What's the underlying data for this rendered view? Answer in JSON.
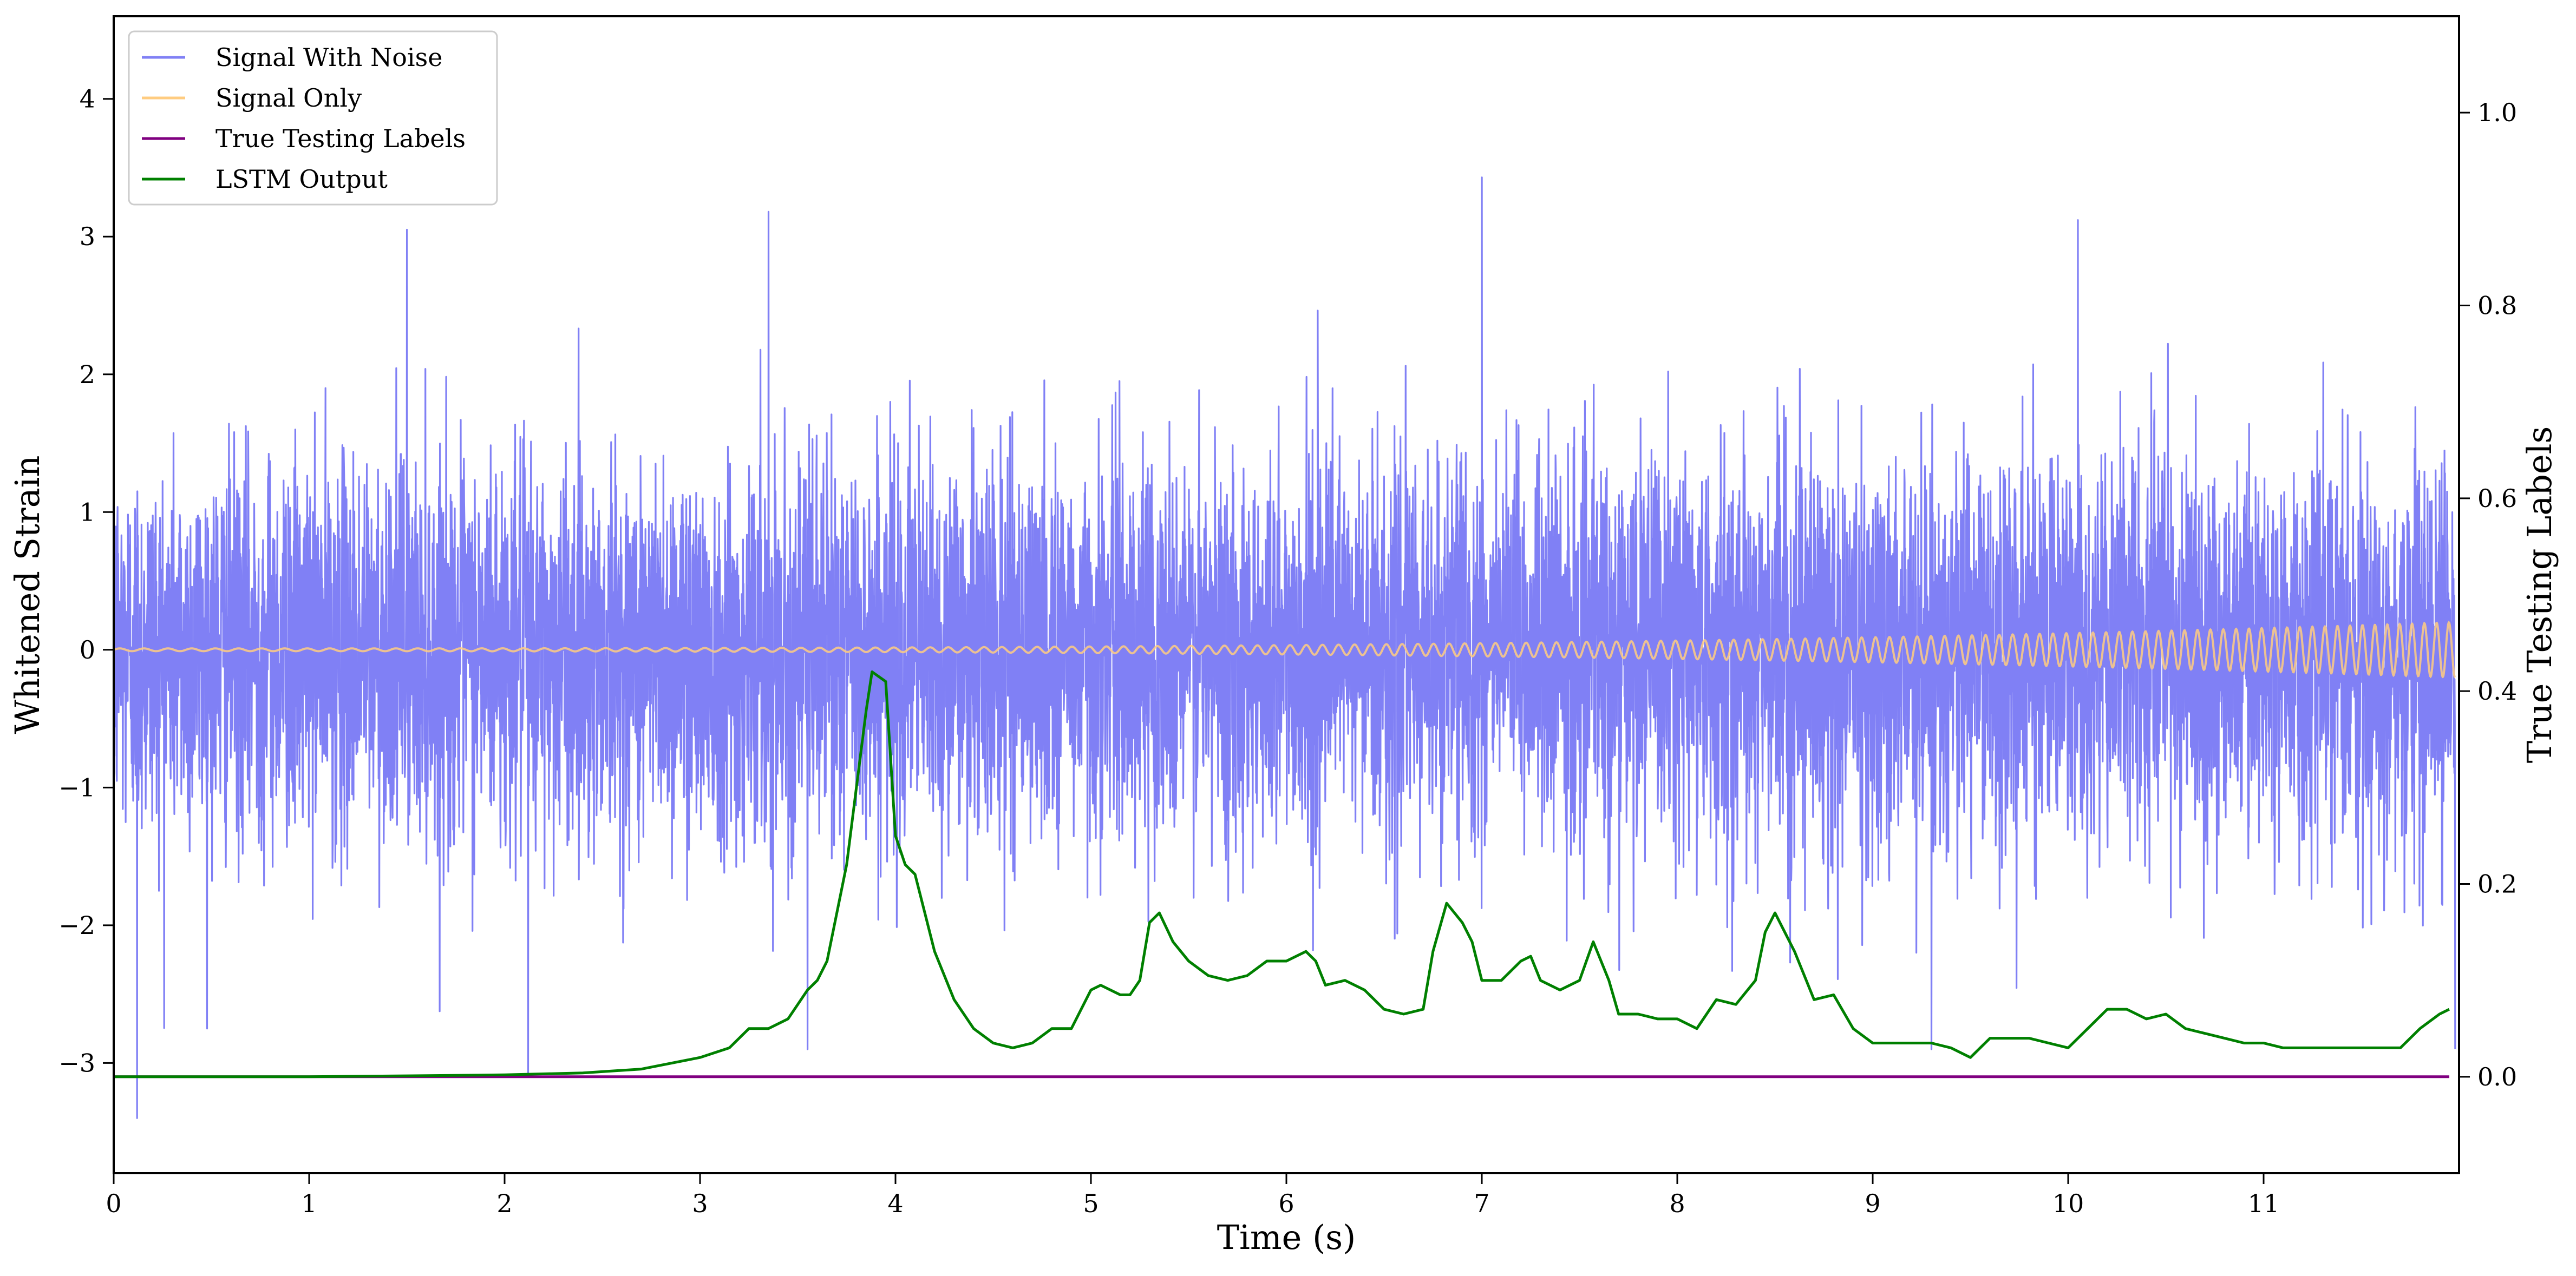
{
  "chart_data": {
    "type": "line",
    "title": "",
    "xlabel": "Time (s)",
    "ylabel": "Whitened Strain",
    "y2label": "True Testing Labels",
    "xlim": [
      0,
      12
    ],
    "ylim": [
      -3.8,
      4.6
    ],
    "y2lim": [
      -0.1,
      1.1
    ],
    "x_ticks": [
      0,
      1,
      2,
      3,
      4,
      5,
      6,
      7,
      8,
      9,
      10,
      11
    ],
    "x_tick_labels": [
      "0",
      "1",
      "2",
      "3",
      "4",
      "5",
      "6",
      "7",
      "8",
      "9",
      "10",
      "11"
    ],
    "y_ticks": [
      -3,
      -2,
      -1,
      0,
      1,
      2,
      3,
      4
    ],
    "y_tick_labels": [
      "−3",
      "−2",
      "−1",
      "0",
      "1",
      "2",
      "3",
      "4"
    ],
    "y2_ticks": [
      0.0,
      0.2,
      0.4,
      0.6,
      0.8,
      1.0
    ],
    "y2_tick_labels": [
      "0.0",
      "0.2",
      "0.4",
      "0.6",
      "0.8",
      "1.0"
    ],
    "grid": false,
    "legend_position": "top-left",
    "series": [
      {
        "name": "Signal With Noise",
        "axis": "left",
        "color": "#8080f5",
        "noise_envelope": {
          "typical_abs": 1.6,
          "peak_max": 3.4,
          "peak_min": -3.4
        },
        "notable_peaks": [
          {
            "x": 0.12,
            "y": -3.4
          },
          {
            "x": 1.5,
            "y": 3.05
          },
          {
            "x": 3.35,
            "y": 3.18
          },
          {
            "x": 7.0,
            "y": 3.43
          },
          {
            "x": 10.05,
            "y": 3.12
          },
          {
            "x": 2.12,
            "y": -3.1
          },
          {
            "x": 3.55,
            "y": -2.9
          },
          {
            "x": 9.3,
            "y": -2.9
          },
          {
            "x": 11.98,
            "y": -2.9
          }
        ]
      },
      {
        "name": "Signal Only",
        "axis": "left",
        "color": "#ffcc80",
        "description_values": {
          "amplitude_start": 0.01,
          "amplitude_end": 0.2,
          "chirp_frequency_start_hz": 8,
          "chirp_frequency_end_hz": 16
        }
      },
      {
        "name": "True Testing Labels",
        "axis": "right",
        "color": "#800080",
        "x": [
          0,
          11.95
        ],
        "y": [
          0.0,
          0.0
        ]
      },
      {
        "name": "LSTM Output",
        "axis": "right",
        "color": "#008000",
        "x": [
          0,
          1,
          2,
          2.4,
          2.7,
          3.0,
          3.15,
          3.25,
          3.35,
          3.45,
          3.55,
          3.6,
          3.65,
          3.7,
          3.75,
          3.8,
          3.85,
          3.88,
          3.95,
          4.0,
          4.05,
          4.1,
          4.15,
          4.2,
          4.3,
          4.4,
          4.5,
          4.6,
          4.7,
          4.8,
          4.9,
          5.0,
          5.05,
          5.1,
          5.15,
          5.2,
          5.25,
          5.3,
          5.35,
          5.42,
          5.5,
          5.6,
          5.7,
          5.8,
          5.9,
          6.0,
          6.1,
          6.15,
          6.2,
          6.3,
          6.4,
          6.5,
          6.6,
          6.7,
          6.75,
          6.82,
          6.9,
          6.95,
          7.0,
          7.1,
          7.2,
          7.25,
          7.3,
          7.4,
          7.5,
          7.57,
          7.65,
          7.7,
          7.8,
          7.9,
          8.0,
          8.1,
          8.2,
          8.3,
          8.4,
          8.45,
          8.5,
          8.6,
          8.7,
          8.8,
          8.9,
          9.0,
          9.1,
          9.2,
          9.3,
          9.4,
          9.5,
          9.6,
          9.7,
          9.8,
          9.9,
          10.0,
          10.1,
          10.2,
          10.3,
          10.4,
          10.5,
          10.6,
          10.7,
          10.8,
          10.9,
          11.0,
          11.1,
          11.2,
          11.3,
          11.4,
          11.5,
          11.6,
          11.7,
          11.8,
          11.9,
          11.95
        ],
        "y": [
          0.0,
          0.0,
          0.002,
          0.004,
          0.008,
          0.02,
          0.03,
          0.05,
          0.05,
          0.06,
          0.09,
          0.1,
          0.12,
          0.17,
          0.22,
          0.3,
          0.38,
          0.42,
          0.41,
          0.25,
          0.22,
          0.21,
          0.17,
          0.13,
          0.08,
          0.05,
          0.035,
          0.03,
          0.035,
          0.05,
          0.05,
          0.09,
          0.095,
          0.09,
          0.085,
          0.085,
          0.1,
          0.16,
          0.17,
          0.14,
          0.12,
          0.105,
          0.1,
          0.105,
          0.12,
          0.12,
          0.13,
          0.12,
          0.095,
          0.1,
          0.09,
          0.07,
          0.065,
          0.07,
          0.13,
          0.18,
          0.16,
          0.14,
          0.1,
          0.1,
          0.12,
          0.125,
          0.1,
          0.09,
          0.1,
          0.14,
          0.1,
          0.065,
          0.065,
          0.06,
          0.06,
          0.05,
          0.08,
          0.075,
          0.1,
          0.15,
          0.17,
          0.13,
          0.08,
          0.085,
          0.05,
          0.035,
          0.035,
          0.035,
          0.035,
          0.03,
          0.02,
          0.04,
          0.04,
          0.04,
          0.035,
          0.03,
          0.05,
          0.07,
          0.07,
          0.06,
          0.065,
          0.05,
          0.045,
          0.04,
          0.035,
          0.035,
          0.03,
          0.03,
          0.03,
          0.03,
          0.03,
          0.03,
          0.03,
          0.05,
          0.065,
          0.07
        ]
      }
    ]
  }
}
